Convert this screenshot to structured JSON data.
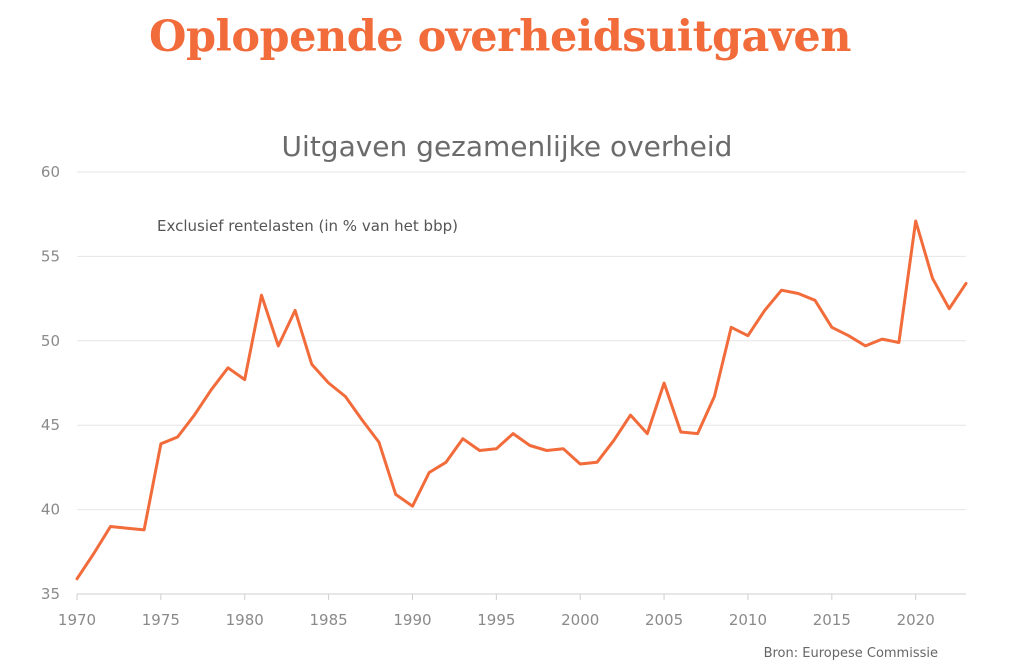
{
  "headline": "Oplopende overheidsuitgaven",
  "colors": {
    "accent": "#f26b3a",
    "grid": "#e6e6e6",
    "axis": "#cfcfcf"
  },
  "source": "Bron: Europese Commissie",
  "chart_data": {
    "type": "line",
    "title": "Uitgaven gezamenlijke overheid",
    "subtitle": "Exclusief rentelasten (in % van het bbp)",
    "xlabel": "",
    "ylabel": "",
    "xlim": [
      1970,
      2023
    ],
    "ylim": [
      35,
      60
    ],
    "xticks": [
      1970,
      1975,
      1980,
      1985,
      1990,
      1995,
      2000,
      2005,
      2010,
      2015,
      2020
    ],
    "yticks": [
      35,
      40,
      45,
      50,
      55,
      60
    ],
    "grid": true,
    "x": [
      1970,
      1971,
      1972,
      1973,
      1974,
      1975,
      1976,
      1977,
      1978,
      1979,
      1980,
      1981,
      1982,
      1983,
      1984,
      1985,
      1986,
      1987,
      1988,
      1989,
      1990,
      1991,
      1992,
      1993,
      1994,
      1995,
      1996,
      1997,
      1998,
      1999,
      2000,
      2001,
      2002,
      2003,
      2004,
      2005,
      2006,
      2007,
      2008,
      2009,
      2010,
      2011,
      2012,
      2013,
      2014,
      2015,
      2016,
      2017,
      2018,
      2019,
      2020,
      2021,
      2022,
      2023
    ],
    "series": [
      {
        "values": [
          35.9,
          37.4,
          39.0,
          38.9,
          38.8,
          43.9,
          44.3,
          45.6,
          47.1,
          48.4,
          47.7,
          52.7,
          49.7,
          51.8,
          48.6,
          47.5,
          46.7,
          45.3,
          44.0,
          40.9,
          40.2,
          42.2,
          42.8,
          44.2,
          43.5,
          43.6,
          44.5,
          43.8,
          43.5,
          43.6,
          42.7,
          42.8,
          44.1,
          45.6,
          44.5,
          47.5,
          44.6,
          44.5,
          46.7,
          50.8,
          50.3,
          51.8,
          53.0,
          52.8,
          52.4,
          50.8,
          50.3,
          49.7,
          50.1,
          49.9,
          57.1,
          53.7,
          51.9,
          53.4
        ]
      }
    ]
  }
}
